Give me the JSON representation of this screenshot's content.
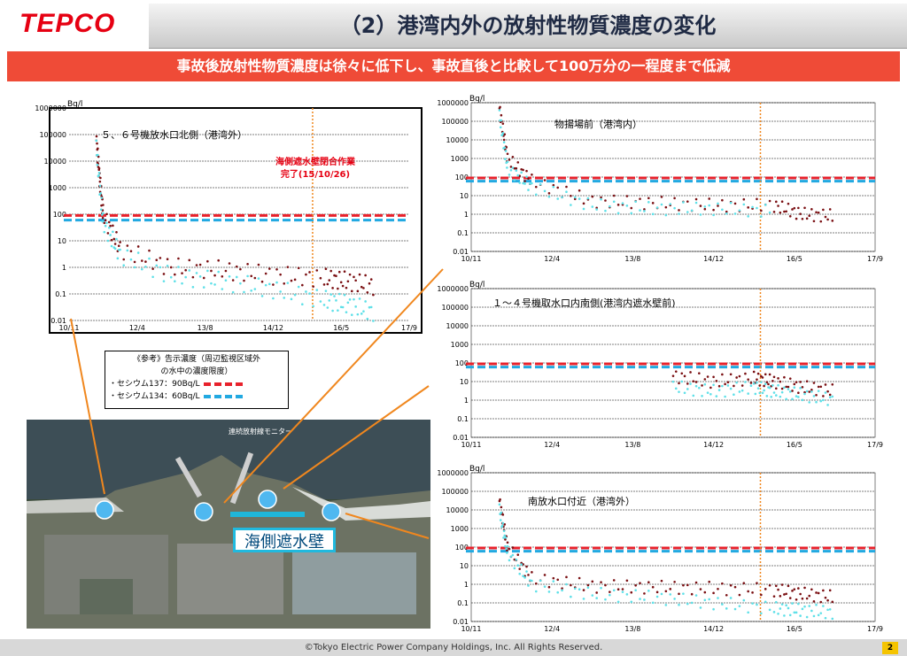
{
  "header": {
    "logo": "TEPCO",
    "title": "（2）港湾内外の放射性物質濃度の変化"
  },
  "banner": "事故後放射性物質濃度は徐々に低下し、事故直後と比較して100万分の一程度まで低減",
  "legend": {
    "title_line1": "《参考》告示濃度（周辺監視区域外",
    "title_line2": "の水中の濃度限度）",
    "cs137": "・セシウム137：90Bq/L",
    "cs134": "・セシウム134：60Bq/L",
    "cs137_color": "#e8212b",
    "cs134_color": "#22a9e1"
  },
  "photo": {
    "monitor_label": "連続放射線モニター",
    "wall_label": "海側遮水壁"
  },
  "footer": {
    "copyright": "©Tokyo Electric Power Company Holdings, Inc. All Rights Reserved.",
    "page": "2"
  },
  "chart_data": [
    {
      "type": "scatter",
      "title": "５、６号機放水口北側（港湾外）",
      "ylabel": "Bq/l",
      "yscale": "log",
      "ylim": [
        0.01,
        1000000
      ],
      "y_ticks": [
        "1000000",
        "100000",
        "10000",
        "1000",
        "100",
        "10",
        "1",
        "0.1",
        "0.01"
      ],
      "x_ticks": [
        "10/11",
        "12/4",
        "13/8",
        "14/12",
        "16/5",
        "17/9"
      ],
      "annotation": {
        "line1": "海側遮水壁閉合作業",
        "line2": "完了(15/10/26)"
      },
      "reference_lines": {
        "cs137": 90,
        "cs134": 60
      },
      "series": [
        {
          "name": "セシウム137",
          "color": "#7a0f12",
          "values": [
            [
              0.08,
              60000
            ],
            [
              0.09,
              2000
            ],
            [
              0.1,
              100
            ],
            [
              0.15,
              5
            ],
            [
              0.3,
              1
            ],
            [
              0.45,
              0.8
            ],
            [
              0.6,
              0.5
            ],
            [
              0.75,
              0.4
            ],
            [
              0.82,
              0.3
            ],
            [
              0.9,
              0.2
            ]
          ]
        },
        {
          "name": "セシウム134",
          "color": "#5ee0e8",
          "values": [
            [
              0.08,
              30000
            ],
            [
              0.1,
              50
            ],
            [
              0.15,
              3
            ],
            [
              0.3,
              0.5
            ],
            [
              0.45,
              0.3
            ],
            [
              0.6,
              0.15
            ],
            [
              0.75,
              0.06
            ],
            [
              0.82,
              0.04
            ],
            [
              0.9,
              0.02
            ]
          ]
        }
      ]
    },
    {
      "type": "scatter",
      "title": "物揚場前（港湾内）",
      "ylabel": "Bq/l",
      "yscale": "log",
      "ylim": [
        0.01,
        1000000
      ],
      "y_ticks": [
        "1000000",
        "100000",
        "10000",
        "1000",
        "100",
        "10",
        "1",
        "0.1",
        "0.01"
      ],
      "x_ticks": [
        "10/11",
        "12/4",
        "13/8",
        "14/12",
        "16/5",
        "17/9"
      ],
      "reference_lines": {
        "cs137": 90,
        "cs134": 60
      },
      "series": [
        {
          "name": "セシウム137",
          "color": "#7a0f12",
          "values": [
            [
              0.07,
              500000
            ],
            [
              0.09,
              1000
            ],
            [
              0.15,
              60
            ],
            [
              0.3,
              5
            ],
            [
              0.45,
              4
            ],
            [
              0.6,
              3
            ],
            [
              0.75,
              3
            ],
            [
              0.82,
              1
            ],
            [
              0.9,
              0.8
            ]
          ]
        },
        {
          "name": "セシウム134",
          "color": "#5ee0e8",
          "values": [
            [
              0.07,
              200000
            ],
            [
              0.09,
              300
            ],
            [
              0.15,
              30
            ],
            [
              0.3,
              3
            ],
            [
              0.45,
              2
            ],
            [
              0.6,
              2
            ],
            [
              0.75,
              1.5
            ]
          ]
        }
      ]
    },
    {
      "type": "scatter",
      "title": "１～４号機取水口内南側(港湾内遮水壁前)",
      "ylabel": "Bq/l",
      "yscale": "log",
      "ylim": [
        0.01,
        1000000
      ],
      "y_ticks": [
        "1000000",
        "100000",
        "10000",
        "1000",
        "100",
        "10",
        "1",
        "0.1",
        "0.01"
      ],
      "x_ticks": [
        "10/11",
        "12/4",
        "13/8",
        "14/12",
        "16/5",
        "17/9"
      ],
      "reference_lines": {
        "cs137": 90,
        "cs134": 60
      },
      "series": [
        {
          "name": "セシウム137",
          "color": "#7a0f12",
          "values": [
            [
              0.5,
              20
            ],
            [
              0.6,
              10
            ],
            [
              0.7,
              15
            ],
            [
              0.75,
              10
            ],
            [
              0.82,
              5
            ],
            [
              0.9,
              3
            ]
          ]
        },
        {
          "name": "セシウム134",
          "color": "#5ee0e8",
          "values": [
            [
              0.5,
              5
            ],
            [
              0.6,
              3
            ],
            [
              0.7,
              5
            ],
            [
              0.75,
              3
            ],
            [
              0.82,
              2
            ],
            [
              0.9,
              1
            ]
          ]
        }
      ]
    },
    {
      "type": "scatter",
      "title": "南放水口付近（港湾外）",
      "ylabel": "Bq/l",
      "yscale": "log",
      "ylim": [
        0.01,
        1000000
      ],
      "y_ticks": [
        "1000000",
        "100000",
        "10000",
        "1000",
        "100",
        "10",
        "1",
        "0.1",
        "0.01"
      ],
      "x_ticks": [
        "10/11",
        "12/4",
        "13/8",
        "14/12",
        "16/5",
        "17/9"
      ],
      "reference_lines": {
        "cs137": 90,
        "cs134": 60
      },
      "series": [
        {
          "name": "セシウム137",
          "color": "#7a0f12",
          "values": [
            [
              0.07,
              30000
            ],
            [
              0.09,
              100
            ],
            [
              0.15,
              2
            ],
            [
              0.3,
              0.8
            ],
            [
              0.45,
              0.7
            ],
            [
              0.6,
              0.6
            ],
            [
              0.75,
              0.5
            ],
            [
              0.82,
              0.3
            ],
            [
              0.9,
              0.2
            ]
          ]
        },
        {
          "name": "セシウム134",
          "color": "#5ee0e8",
          "values": [
            [
              0.07,
              10000
            ],
            [
              0.09,
              50
            ],
            [
              0.15,
              1
            ],
            [
              0.3,
              0.3
            ],
            [
              0.45,
              0.2
            ],
            [
              0.6,
              0.1
            ],
            [
              0.75,
              0.05
            ],
            [
              0.82,
              0.04
            ],
            [
              0.9,
              0.03
            ]
          ]
        }
      ]
    }
  ]
}
